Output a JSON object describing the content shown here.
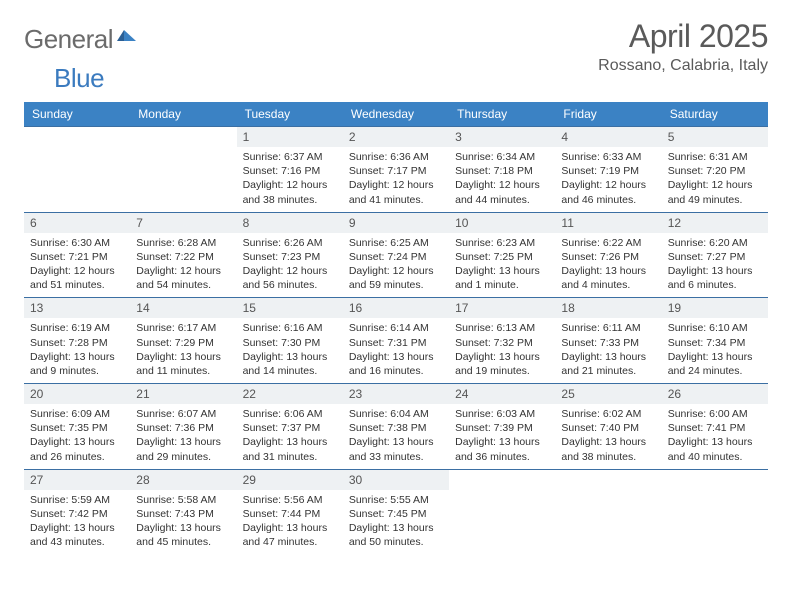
{
  "brand": {
    "part1": "General",
    "part2": "Blue"
  },
  "title": "April 2025",
  "location": "Rossano, Calabria, Italy",
  "colors": {
    "header_bg": "#3b82c4",
    "header_text": "#ffffff",
    "row_border": "#3b6fa3",
    "daynum_bg": "#eef1f3",
    "text": "#333333",
    "logo_gray": "#6b6b6b",
    "logo_blue": "#3b7bbf",
    "page_bg": "#ffffff"
  },
  "day_headers": [
    "Sunday",
    "Monday",
    "Tuesday",
    "Wednesday",
    "Thursday",
    "Friday",
    "Saturday"
  ],
  "weeks": [
    [
      {
        "n": "",
        "sr": "",
        "ss": "",
        "dl": ""
      },
      {
        "n": "",
        "sr": "",
        "ss": "",
        "dl": ""
      },
      {
        "n": "1",
        "sr": "Sunrise: 6:37 AM",
        "ss": "Sunset: 7:16 PM",
        "dl": "Daylight: 12 hours and 38 minutes."
      },
      {
        "n": "2",
        "sr": "Sunrise: 6:36 AM",
        "ss": "Sunset: 7:17 PM",
        "dl": "Daylight: 12 hours and 41 minutes."
      },
      {
        "n": "3",
        "sr": "Sunrise: 6:34 AM",
        "ss": "Sunset: 7:18 PM",
        "dl": "Daylight: 12 hours and 44 minutes."
      },
      {
        "n": "4",
        "sr": "Sunrise: 6:33 AM",
        "ss": "Sunset: 7:19 PM",
        "dl": "Daylight: 12 hours and 46 minutes."
      },
      {
        "n": "5",
        "sr": "Sunrise: 6:31 AM",
        "ss": "Sunset: 7:20 PM",
        "dl": "Daylight: 12 hours and 49 minutes."
      }
    ],
    [
      {
        "n": "6",
        "sr": "Sunrise: 6:30 AM",
        "ss": "Sunset: 7:21 PM",
        "dl": "Daylight: 12 hours and 51 minutes."
      },
      {
        "n": "7",
        "sr": "Sunrise: 6:28 AM",
        "ss": "Sunset: 7:22 PM",
        "dl": "Daylight: 12 hours and 54 minutes."
      },
      {
        "n": "8",
        "sr": "Sunrise: 6:26 AM",
        "ss": "Sunset: 7:23 PM",
        "dl": "Daylight: 12 hours and 56 minutes."
      },
      {
        "n": "9",
        "sr": "Sunrise: 6:25 AM",
        "ss": "Sunset: 7:24 PM",
        "dl": "Daylight: 12 hours and 59 minutes."
      },
      {
        "n": "10",
        "sr": "Sunrise: 6:23 AM",
        "ss": "Sunset: 7:25 PM",
        "dl": "Daylight: 13 hours and 1 minute."
      },
      {
        "n": "11",
        "sr": "Sunrise: 6:22 AM",
        "ss": "Sunset: 7:26 PM",
        "dl": "Daylight: 13 hours and 4 minutes."
      },
      {
        "n": "12",
        "sr": "Sunrise: 6:20 AM",
        "ss": "Sunset: 7:27 PM",
        "dl": "Daylight: 13 hours and 6 minutes."
      }
    ],
    [
      {
        "n": "13",
        "sr": "Sunrise: 6:19 AM",
        "ss": "Sunset: 7:28 PM",
        "dl": "Daylight: 13 hours and 9 minutes."
      },
      {
        "n": "14",
        "sr": "Sunrise: 6:17 AM",
        "ss": "Sunset: 7:29 PM",
        "dl": "Daylight: 13 hours and 11 minutes."
      },
      {
        "n": "15",
        "sr": "Sunrise: 6:16 AM",
        "ss": "Sunset: 7:30 PM",
        "dl": "Daylight: 13 hours and 14 minutes."
      },
      {
        "n": "16",
        "sr": "Sunrise: 6:14 AM",
        "ss": "Sunset: 7:31 PM",
        "dl": "Daylight: 13 hours and 16 minutes."
      },
      {
        "n": "17",
        "sr": "Sunrise: 6:13 AM",
        "ss": "Sunset: 7:32 PM",
        "dl": "Daylight: 13 hours and 19 minutes."
      },
      {
        "n": "18",
        "sr": "Sunrise: 6:11 AM",
        "ss": "Sunset: 7:33 PM",
        "dl": "Daylight: 13 hours and 21 minutes."
      },
      {
        "n": "19",
        "sr": "Sunrise: 6:10 AM",
        "ss": "Sunset: 7:34 PM",
        "dl": "Daylight: 13 hours and 24 minutes."
      }
    ],
    [
      {
        "n": "20",
        "sr": "Sunrise: 6:09 AM",
        "ss": "Sunset: 7:35 PM",
        "dl": "Daylight: 13 hours and 26 minutes."
      },
      {
        "n": "21",
        "sr": "Sunrise: 6:07 AM",
        "ss": "Sunset: 7:36 PM",
        "dl": "Daylight: 13 hours and 29 minutes."
      },
      {
        "n": "22",
        "sr": "Sunrise: 6:06 AM",
        "ss": "Sunset: 7:37 PM",
        "dl": "Daylight: 13 hours and 31 minutes."
      },
      {
        "n": "23",
        "sr": "Sunrise: 6:04 AM",
        "ss": "Sunset: 7:38 PM",
        "dl": "Daylight: 13 hours and 33 minutes."
      },
      {
        "n": "24",
        "sr": "Sunrise: 6:03 AM",
        "ss": "Sunset: 7:39 PM",
        "dl": "Daylight: 13 hours and 36 minutes."
      },
      {
        "n": "25",
        "sr": "Sunrise: 6:02 AM",
        "ss": "Sunset: 7:40 PM",
        "dl": "Daylight: 13 hours and 38 minutes."
      },
      {
        "n": "26",
        "sr": "Sunrise: 6:00 AM",
        "ss": "Sunset: 7:41 PM",
        "dl": "Daylight: 13 hours and 40 minutes."
      }
    ],
    [
      {
        "n": "27",
        "sr": "Sunrise: 5:59 AM",
        "ss": "Sunset: 7:42 PM",
        "dl": "Daylight: 13 hours and 43 minutes."
      },
      {
        "n": "28",
        "sr": "Sunrise: 5:58 AM",
        "ss": "Sunset: 7:43 PM",
        "dl": "Daylight: 13 hours and 45 minutes."
      },
      {
        "n": "29",
        "sr": "Sunrise: 5:56 AM",
        "ss": "Sunset: 7:44 PM",
        "dl": "Daylight: 13 hours and 47 minutes."
      },
      {
        "n": "30",
        "sr": "Sunrise: 5:55 AM",
        "ss": "Sunset: 7:45 PM",
        "dl": "Daylight: 13 hours and 50 minutes."
      },
      {
        "n": "",
        "sr": "",
        "ss": "",
        "dl": ""
      },
      {
        "n": "",
        "sr": "",
        "ss": "",
        "dl": ""
      },
      {
        "n": "",
        "sr": "",
        "ss": "",
        "dl": ""
      }
    ]
  ]
}
